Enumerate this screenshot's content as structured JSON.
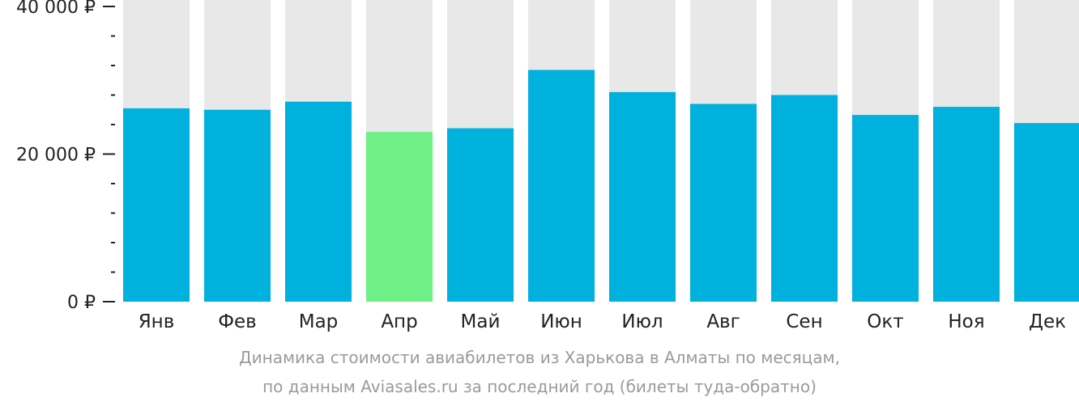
{
  "chart_data": {
    "type": "bar",
    "categories": [
      "Янв",
      "Фев",
      "Мар",
      "Апр",
      "Май",
      "Июн",
      "Июл",
      "Авг",
      "Сен",
      "Окт",
      "Ноя",
      "Дек"
    ],
    "values": [
      26200,
      26000,
      27100,
      23000,
      23500,
      31400,
      28400,
      26800,
      28000,
      25300,
      26400,
      24200
    ],
    "highlight_index": 3,
    "ylim": [
      0,
      40000
    ],
    "yticks": [
      {
        "value": 0,
        "label": "0 ₽"
      },
      {
        "value": 20000,
        "label": "20 000 ₽"
      },
      {
        "value": 40000,
        "label": "40 000 ₽"
      }
    ],
    "minor_tick_step": 4000,
    "colors": {
      "bar": "#00b0dd",
      "highlight": "#6ef086",
      "background_bar": "#e8e8e8",
      "axis": "#222222"
    },
    "caption": [
      "Динамика стоимости авиабилетов из Харькова в Алматы по месяцам,",
      "по данным Aviasales.ru за последний год (билеты туда-обратно)"
    ]
  }
}
